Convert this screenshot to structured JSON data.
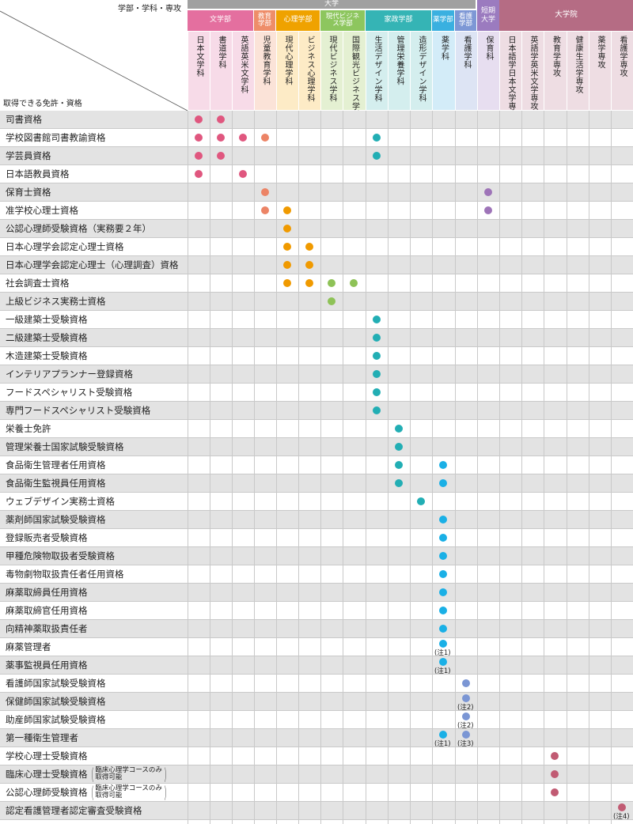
{
  "corner": {
    "top_label": "学部・学科・専攻",
    "bottom_label": "取得できる免許・資格"
  },
  "colors": {
    "university_bar": "#a0a0a0",
    "junior_bar": "#9b7bbf",
    "graduate_bar": "#b56c84",
    "literature": "#e46f9f",
    "education": "#ee8d69",
    "psychology": "#efa200",
    "business": "#8dc65e",
    "home_economics": "#35b4b5",
    "pharmacy": "#3ab0e0",
    "nursing": "#7d97d5",
    "junior_college": "#9d79b7",
    "graduate": "#b55e74"
  },
  "top_groups": [
    {
      "label": "大学",
      "color": "#a0a0a0"
    },
    {
      "label": "短期大学",
      "color": "#9b7bbf"
    },
    {
      "label": "大学院",
      "color": "#b56c84"
    }
  ],
  "faculties": [
    {
      "label": "文学部",
      "color": "#e46f9f"
    },
    {
      "label": "教育学部",
      "color": "#ee8d69"
    },
    {
      "label": "心理学部",
      "color": "#efa200"
    },
    {
      "label": "現代ビジネス学部",
      "color": "#8dc65e"
    },
    {
      "label": "家政学部",
      "color": "#35b4b5"
    },
    {
      "label": "薬学部",
      "color": "#3ab0e0"
    },
    {
      "label": "看護学部",
      "color": "#7d97d5"
    }
  ],
  "columns": [
    {
      "label": "日本文学科",
      "bg": "#f7dbe8",
      "dot": "#e0577f"
    },
    {
      "label": "書道学科",
      "bg": "#f7dbe8",
      "dot": "#e0577f"
    },
    {
      "label": "英語英米文学科",
      "bg": "#f7dbe8",
      "dot": "#e0577f"
    },
    {
      "label": "児童教育学科",
      "bg": "#fbe3d8",
      "dot": "#ec8466"
    },
    {
      "label": "現代心理学科",
      "bg": "#fdebc6",
      "dot": "#f09a00"
    },
    {
      "label": "ビジネス心理学科",
      "bg": "#fdebc6",
      "dot": "#f09a00"
    },
    {
      "label": "現代ビジネス学科",
      "bg": "#e4f0d2",
      "dot": "#8ec257"
    },
    {
      "label": "国際観光ビジネス学科",
      "bg": "#e4f0d2",
      "dot": "#8ec257"
    },
    {
      "label": "生活デザイン学科",
      "bg": "#d4eeee",
      "dot": "#22aeb4"
    },
    {
      "label": "管理栄養学科",
      "bg": "#d4eeee",
      "dot": "#22aeb4"
    },
    {
      "label": "造形デザイン学科",
      "bg": "#d4eeee",
      "dot": "#22aeb4"
    },
    {
      "label": "薬学科",
      "bg": "#d3ecf8",
      "dot": "#1ab0e6"
    },
    {
      "label": "看護学科",
      "bg": "#dde4f4",
      "dot": "#7b96d4"
    },
    {
      "label": "保育科",
      "bg": "#e7def0",
      "dot": "#9e74b8"
    },
    {
      "label": "日本語学日本文学専攻",
      "bg": "#eeddE3",
      "dot": "#c15b73"
    },
    {
      "label": "英語学英米文学専攻",
      "bg": "#eedde3",
      "dot": "#c15b73"
    },
    {
      "label": "教育学専攻",
      "bg": "#eedde3",
      "dot": "#c15b73"
    },
    {
      "label": "健康生活学専攻",
      "bg": "#eedde3",
      "dot": "#c15b73"
    },
    {
      "label": "薬学専攻",
      "bg": "#eedde3",
      "dot": "#c15b73"
    },
    {
      "label": "看護学専攻",
      "bg": "#eedde3",
      "dot": "#c15b73"
    }
  ],
  "rows": [
    {
      "label": "司書資格",
      "marks": [
        0,
        1
      ]
    },
    {
      "label": "学校図書館司書教諭資格",
      "marks": [
        0,
        1,
        2,
        3,
        8
      ]
    },
    {
      "label": "学芸員資格",
      "marks": [
        0,
        1,
        8
      ]
    },
    {
      "label": "日本語教員資格",
      "marks": [
        0,
        2
      ]
    },
    {
      "label": "保育士資格",
      "marks": [
        3,
        13
      ]
    },
    {
      "label": "准学校心理士資格",
      "marks": [
        3,
        4,
        13
      ]
    },
    {
      "label": "公認心理師受験資格（実務要２年）",
      "marks": [
        4
      ]
    },
    {
      "label": "日本心理学会認定心理士資格",
      "marks": [
        4,
        5
      ]
    },
    {
      "label": "日本心理学会認定心理士（心理調査）資格",
      "marks": [
        4,
        5
      ]
    },
    {
      "label": "社会調査士資格",
      "marks": [
        4,
        5,
        6,
        7
      ]
    },
    {
      "label": "上級ビジネス実務士資格",
      "marks": [
        6
      ]
    },
    {
      "label": "一級建築士受験資格",
      "marks": [
        8
      ]
    },
    {
      "label": "二級建築士受験資格",
      "marks": [
        8
      ]
    },
    {
      "label": "木造建築士受験資格",
      "marks": [
        8
      ]
    },
    {
      "label": "インテリアプランナー登録資格",
      "marks": [
        8
      ]
    },
    {
      "label": "フードスペシャリスト受験資格",
      "marks": [
        8
      ]
    },
    {
      "label": "専門フードスペシャリスト受験資格",
      "marks": [
        8
      ]
    },
    {
      "label": "栄養士免許",
      "marks": [
        9
      ]
    },
    {
      "label": "管理栄養士国家試験受験資格",
      "marks": [
        9
      ]
    },
    {
      "label": "食品衛生管理者任用資格",
      "marks": [
        9,
        11
      ]
    },
    {
      "label": "食品衛生監視員任用資格",
      "marks": [
        9,
        11
      ]
    },
    {
      "label": "ウェブデザイン実務士資格",
      "marks": [
        10
      ]
    },
    {
      "label": "薬剤師国家試験受験資格",
      "marks": [
        11
      ]
    },
    {
      "label": "登録販売者受験資格",
      "marks": [
        11
      ]
    },
    {
      "label": "甲種危険物取扱者受験資格",
      "marks": [
        11
      ]
    },
    {
      "label": "毒物劇物取扱責任者任用資格",
      "marks": [
        11
      ]
    },
    {
      "label": "麻薬取締員任用資格",
      "marks": [
        11
      ]
    },
    {
      "label": "麻薬取締官任用資格",
      "marks": [
        11
      ]
    },
    {
      "label": "向精神薬取扱責任者",
      "marks": [
        11
      ]
    },
    {
      "label": "麻薬管理者",
      "marks": [
        11
      ],
      "notes": {
        "11": "(注1)"
      }
    },
    {
      "label": "薬事監視員任用資格",
      "marks": [
        11
      ],
      "notes": {
        "11": "(注1)"
      }
    },
    {
      "label": "看護師国家試験受験資格",
      "marks": [
        12
      ]
    },
    {
      "label": "保健師国家試験受験資格",
      "marks": [
        12
      ],
      "notes": {
        "12": "(注2)"
      }
    },
    {
      "label": "助産師国家試験受験資格",
      "marks": [
        12
      ],
      "notes": {
        "12": "(注2)"
      }
    },
    {
      "label": "第一種衛生管理者",
      "marks": [
        11,
        12
      ],
      "notes": {
        "11": "(注1)",
        "12": "(注3)"
      }
    },
    {
      "label": "学校心理士受験資格",
      "marks": [
        16
      ]
    },
    {
      "label": "臨床心理士受験資格",
      "sub": [
        "臨床心理学コースのみ",
        "取得可能"
      ],
      "marks": [
        16
      ]
    },
    {
      "label": "公認心理師受験資格",
      "sub": [
        "臨床心理学コースのみ",
        "取得可能"
      ],
      "marks": [
        16
      ]
    },
    {
      "label": "認定看護管理者認定審査受験資格",
      "marks": [
        19
      ],
      "notes": {
        "19": "(注4)"
      }
    }
  ]
}
